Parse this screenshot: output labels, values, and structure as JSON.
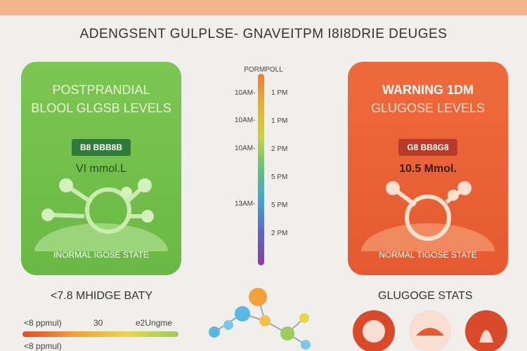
{
  "header": {
    "title": "ADENGSENT GULPLSE- GNAVEITPM I8I8DRIE DEUGES"
  },
  "left_card": {
    "heading": "POSTPRANDIAL",
    "subheading": "BLOOL GLGSB LEVELS",
    "badge": "B8 BBB8B",
    "reading": "VI mmol.L",
    "footer": "INORMAL IGOSE STATE"
  },
  "right_card": {
    "heading": "WARNING 1DM",
    "subheading": "GLUGOSE LEVELS",
    "badge": "G8 BB8G8",
    "reading": "10.5 Mmol.",
    "footer": "NORMAL TIGOSE STATE"
  },
  "timeline": {
    "title": "PORMPOLL",
    "left_labels": [
      "10AM-",
      "10AM-",
      "10AM-",
      "13AM-"
    ],
    "right_labels": [
      "1 PM",
      "1 PM",
      "2 PM",
      "5 PM",
      "5 PM",
      "2 PM"
    ]
  },
  "footer": {
    "left_title": "<7.8 MHIDGE BATY",
    "scale_labels": [
      "<8 ppmul)",
      "30",
      "e2Ungme",
      "<8 ppmul)"
    ],
    "right_title": "GLUGOGE STATS"
  }
}
